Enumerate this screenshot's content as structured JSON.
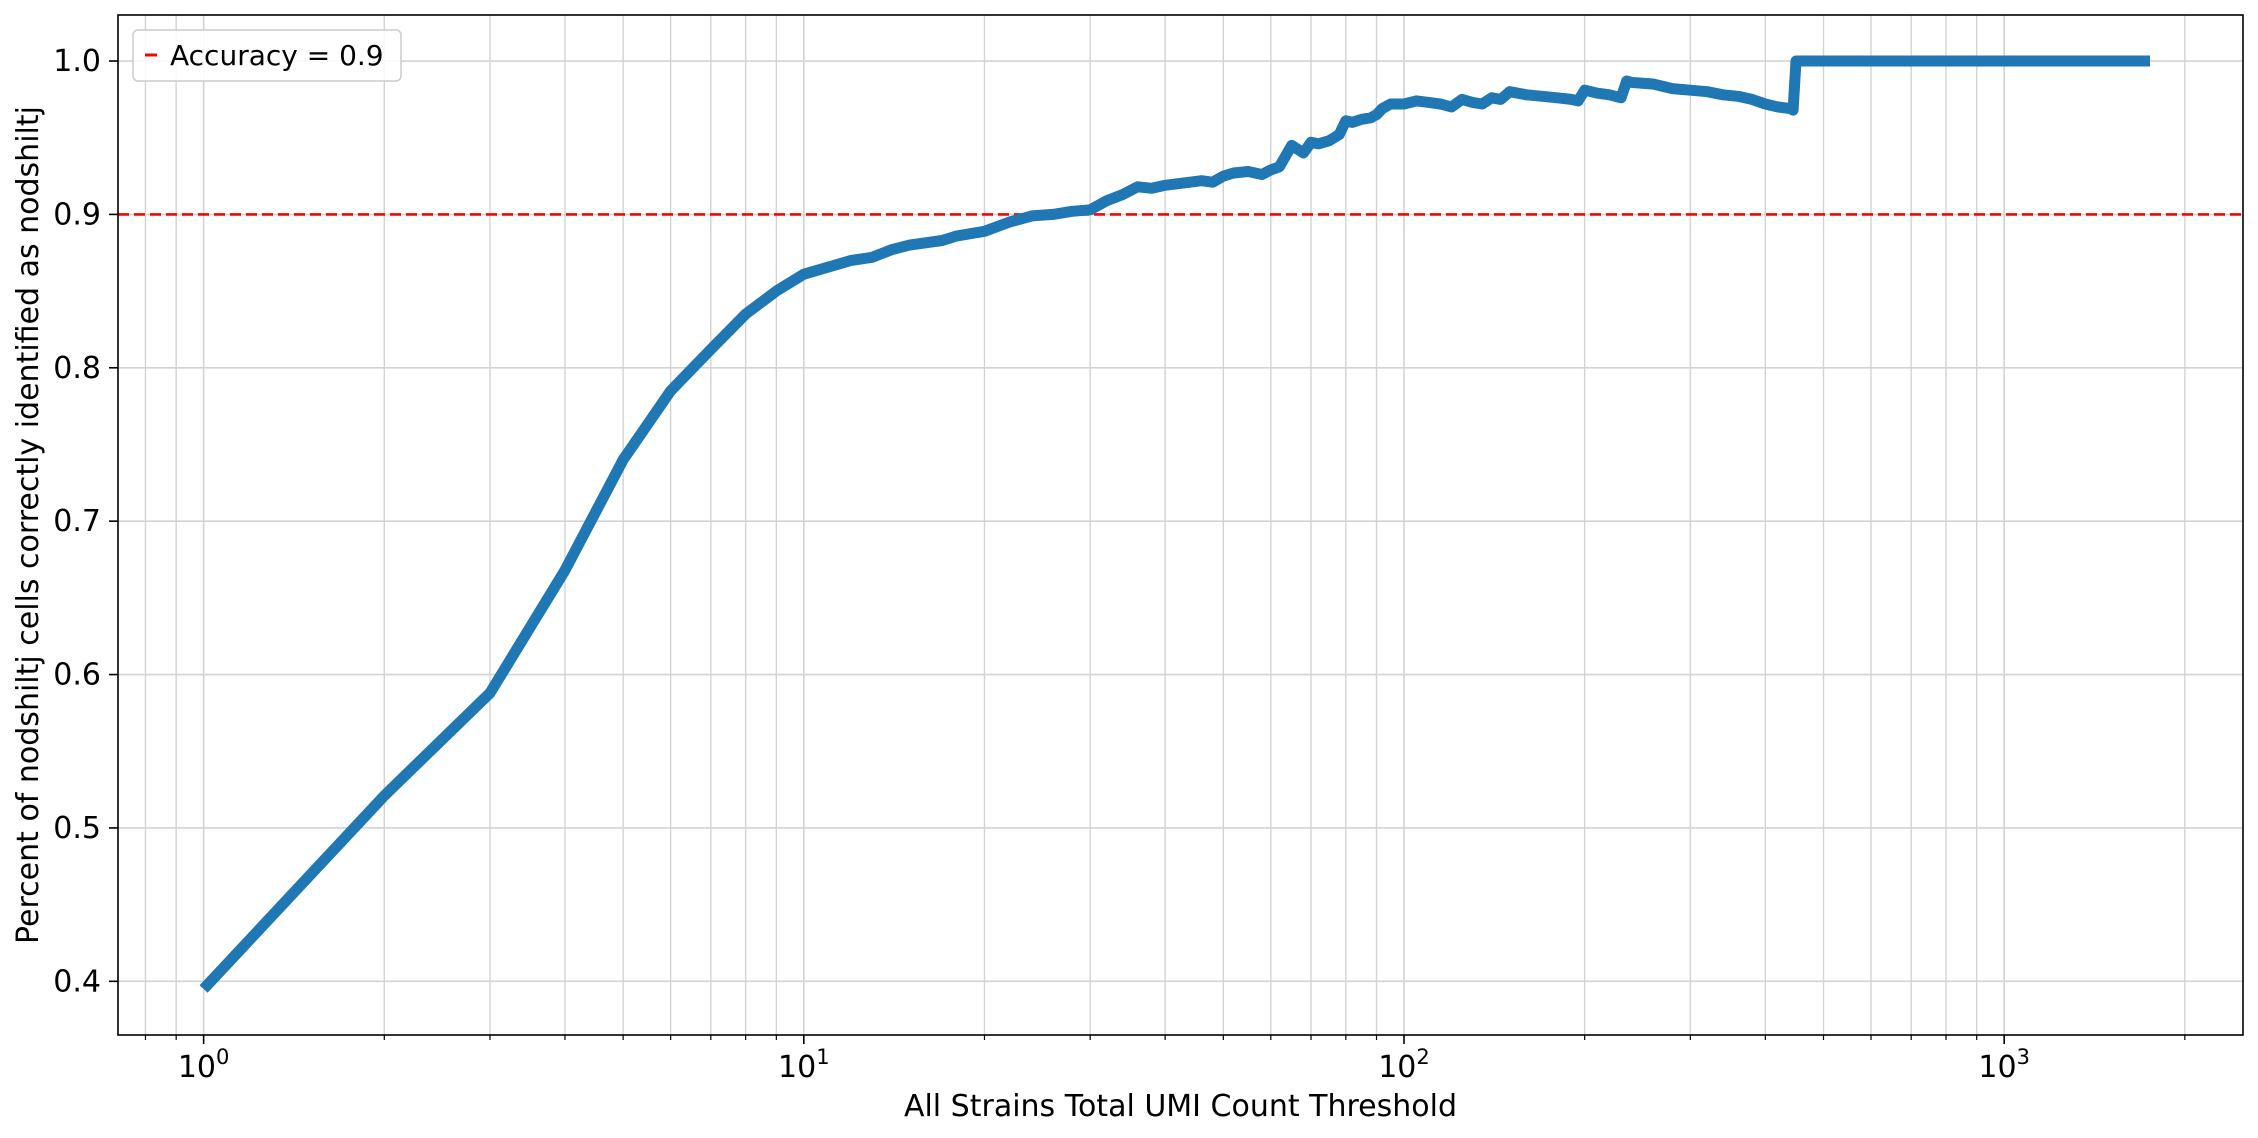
{
  "chart_data": {
    "type": "line",
    "title": "",
    "xlabel": "All Strains Total UMI Count Threshold",
    "ylabel": "Percent of nodshiltj cells correctly identified as nodshiltj",
    "xscale": "log",
    "xlim": [
      0.72,
      2500
    ],
    "ylim": [
      0.365,
      1.03
    ],
    "grid": true,
    "legend": {
      "placement": "top-left",
      "entries": [
        "Accuracy = 0.9"
      ]
    },
    "x_ticks": [
      1,
      10,
      100,
      1000
    ],
    "x_tick_labels": [
      {
        "base": "10",
        "exp": "0"
      },
      {
        "base": "10",
        "exp": "1"
      },
      {
        "base": "10",
        "exp": "2"
      },
      {
        "base": "10",
        "exp": "3"
      }
    ],
    "y_ticks": [
      0.4,
      0.5,
      0.6,
      0.7,
      0.8,
      0.9,
      1.0
    ],
    "y_tick_labels": [
      "0.4",
      "0.5",
      "0.6",
      "0.7",
      "0.8",
      "0.9",
      "1.0"
    ],
    "colors": {
      "series": "#1f77b4",
      "reference": "#ff0000",
      "grid": "#d3d3d3"
    },
    "series": [
      {
        "x": [
          1,
          2,
          3,
          4,
          5,
          6,
          7,
          8,
          9,
          10,
          12,
          13,
          14,
          15,
          17,
          18,
          20,
          22,
          24,
          26,
          28,
          30,
          32,
          34,
          36,
          38,
          40,
          42,
          44,
          46,
          48,
          50,
          52,
          55,
          58,
          60,
          62,
          65,
          68,
          70,
          72,
          75,
          78,
          80,
          82,
          85,
          88,
          90,
          92,
          95,
          100,
          105,
          110,
          115,
          120,
          125,
          130,
          135,
          140,
          145,
          150,
          160,
          170,
          180,
          190,
          195,
          200,
          210,
          220,
          230,
          235,
          240,
          260,
          280,
          300,
          320,
          340,
          360,
          380,
          400,
          420,
          440,
          445,
          450,
          500,
          700,
          1000,
          1500,
          1750
        ],
        "y": [
          0.395,
          0.521,
          0.588,
          0.668,
          0.74,
          0.785,
          0.812,
          0.835,
          0.85,
          0.861,
          0.87,
          0.872,
          0.877,
          0.88,
          0.883,
          0.886,
          0.889,
          0.895,
          0.899,
          0.9,
          0.902,
          0.903,
          0.909,
          0.913,
          0.918,
          0.917,
          0.919,
          0.92,
          0.921,
          0.922,
          0.921,
          0.925,
          0.927,
          0.928,
          0.926,
          0.929,
          0.931,
          0.945,
          0.94,
          0.947,
          0.946,
          0.948,
          0.952,
          0.961,
          0.96,
          0.962,
          0.963,
          0.965,
          0.969,
          0.972,
          0.972,
          0.974,
          0.973,
          0.972,
          0.97,
          0.975,
          0.973,
          0.972,
          0.976,
          0.975,
          0.98,
          0.978,
          0.977,
          0.976,
          0.975,
          0.974,
          0.981,
          0.979,
          0.978,
          0.976,
          0.987,
          0.986,
          0.985,
          0.982,
          0.981,
          0.98,
          0.978,
          0.977,
          0.975,
          0.972,
          0.97,
          0.969,
          0.968,
          1.0,
          1.0,
          1.0,
          1.0,
          1.0,
          1.0
        ]
      }
    ],
    "reference_line": {
      "y": 0.9,
      "label": "Accuracy = 0.9"
    }
  }
}
